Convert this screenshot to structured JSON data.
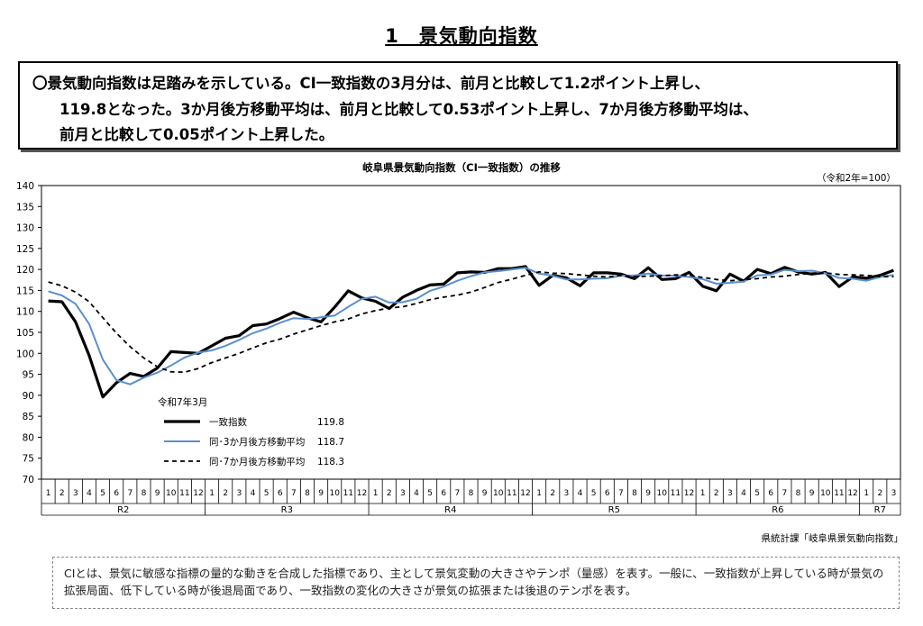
{
  "header": {
    "title": "1　景気動向指数"
  },
  "summary": {
    "line1": "〇景気動向指数は足踏みを示している。CI一致指数の3月分は、前月と比較して1.2ポイント上昇し、",
    "line2": "119.8となった。3か月後方移動平均は、前月と比較して0.53ポイント上昇し、7か月後方移動平均は、",
    "line3": "前月と比較して0.05ポイント上昇した。"
  },
  "chart_data": {
    "type": "line",
    "title": "岐阜県景気動向指数（CI一致指数）の推移",
    "base_note": "（令和2年=100）",
    "ylim": [
      70,
      140
    ],
    "yticks": [
      "140",
      "135",
      "130",
      "125",
      "120",
      "115",
      "110",
      "105",
      "100",
      "95",
      "90",
      "85",
      "80",
      "75",
      "70"
    ],
    "grid": false,
    "month_labels": [
      "1",
      "2",
      "3",
      "4",
      "5",
      "6",
      "7",
      "8",
      "9",
      "10",
      "11",
      "12",
      "1",
      "2",
      "3",
      "4",
      "5",
      "6",
      "7",
      "8",
      "9",
      "10",
      "11",
      "12",
      "1",
      "2",
      "3",
      "4",
      "5",
      "6",
      "7",
      "8",
      "9",
      "10",
      "11",
      "12",
      "1",
      "2",
      "3",
      "4",
      "5",
      "6",
      "7",
      "8",
      "9",
      "10",
      "11",
      "12",
      "1",
      "2",
      "3",
      "4",
      "5",
      "6",
      "7",
      "8",
      "9",
      "10",
      "11",
      "12",
      "1",
      "2",
      "3"
    ],
    "year_groups": [
      {
        "label": "R2",
        "months": 12
      },
      {
        "label": "R3",
        "months": 12
      },
      {
        "label": "R4",
        "months": 12
      },
      {
        "label": "R5",
        "months": 12
      },
      {
        "label": "R6",
        "months": 12
      },
      {
        "label": "R7",
        "months": 3
      }
    ],
    "legend_title": "令和7年3月",
    "series": [
      {
        "name": "一致指数",
        "latest": "119.8",
        "color": "#000000",
        "width": 3.2,
        "dash": "",
        "values": [
          112.5,
          112.3,
          107.5,
          99.5,
          89.6,
          93.0,
          95.2,
          94.5,
          96.5,
          100.4,
          100.2,
          100.0,
          101.8,
          103.6,
          104.2,
          106.6,
          107.0,
          108.3,
          109.8,
          108.5,
          107.5,
          111.0,
          114.9,
          113.2,
          112.4,
          110.7,
          113.4,
          115.0,
          116.3,
          116.5,
          119.2,
          119.4,
          119.3,
          120.2,
          120.2,
          120.7,
          116.2,
          118.6,
          118.0,
          116.1,
          119.2,
          119.2,
          118.9,
          117.8,
          120.4,
          117.6,
          117.8,
          119.3,
          116.0,
          114.9,
          118.9,
          117.2,
          120.0,
          119.0,
          120.5,
          119.4,
          118.9,
          119.3,
          115.9,
          118.2,
          117.9,
          118.6,
          119.8
        ]
      },
      {
        "name": "同･3か月後方移動平均",
        "latest": "118.7",
        "color": "#5b8fd0",
        "width": 2,
        "dash": "",
        "values": [
          114.8,
          113.8,
          111.8,
          107.0,
          98.5,
          93.6,
          92.6,
          94.2,
          95.4,
          97.1,
          99.0,
          100.2,
          100.7,
          101.8,
          103.2,
          104.8,
          105.9,
          107.3,
          108.4,
          108.2,
          108.6,
          109.0,
          111.1,
          113.0,
          113.5,
          112.1,
          112.2,
          113.0,
          114.9,
          115.9,
          117.3,
          118.4,
          119.3,
          119.6,
          120.0,
          120.4,
          119.0,
          118.5,
          117.6,
          117.6,
          117.8,
          117.9,
          118.5,
          118.6,
          119.0,
          118.6,
          118.5,
          118.2,
          117.7,
          116.6,
          116.8,
          117.1,
          118.6,
          118.8,
          119.9,
          119.6,
          119.7,
          119.1,
          118.0,
          117.8,
          117.3,
          118.2,
          118.7
        ]
      },
      {
        "name": "同･7か月後方移動平均",
        "latest": "118.3",
        "color": "#000000",
        "width": 1.8,
        "dash": "5,4",
        "values": [
          117.0,
          116.1,
          114.6,
          112.3,
          108.5,
          104.8,
          101.6,
          98.9,
          96.8,
          95.6,
          95.5,
          96.4,
          97.8,
          98.9,
          100.0,
          101.3,
          102.5,
          103.4,
          104.6,
          105.6,
          106.6,
          107.5,
          108.2,
          109.4,
          110.2,
          110.8,
          111.1,
          111.9,
          112.8,
          113.4,
          113.9,
          114.6,
          115.7,
          116.9,
          117.7,
          118.6,
          119.4,
          119.1,
          119.0,
          118.7,
          118.4,
          118.2,
          118.6,
          118.3,
          118.4,
          118.5,
          118.7,
          118.6,
          118.1,
          117.6,
          117.3,
          117.6,
          117.8,
          118.2,
          118.4,
          118.8,
          119.1,
          119.2,
          118.8,
          118.7,
          118.6,
          118.3,
          118.3
        ]
      }
    ]
  },
  "source": "県統計課「岐阜県景気動向指数」",
  "footnote": "CIとは、景気に敏感な指標の量的な動きを合成した指標であり、主として景気変動の大きさやテンポ（量感）を表す。一般に、一致指数が上昇している時が景気の拡張局面、低下している時が後退局面であり、一致指数の変化の大きさが景気の拡張または後退のテンポを表す。"
}
